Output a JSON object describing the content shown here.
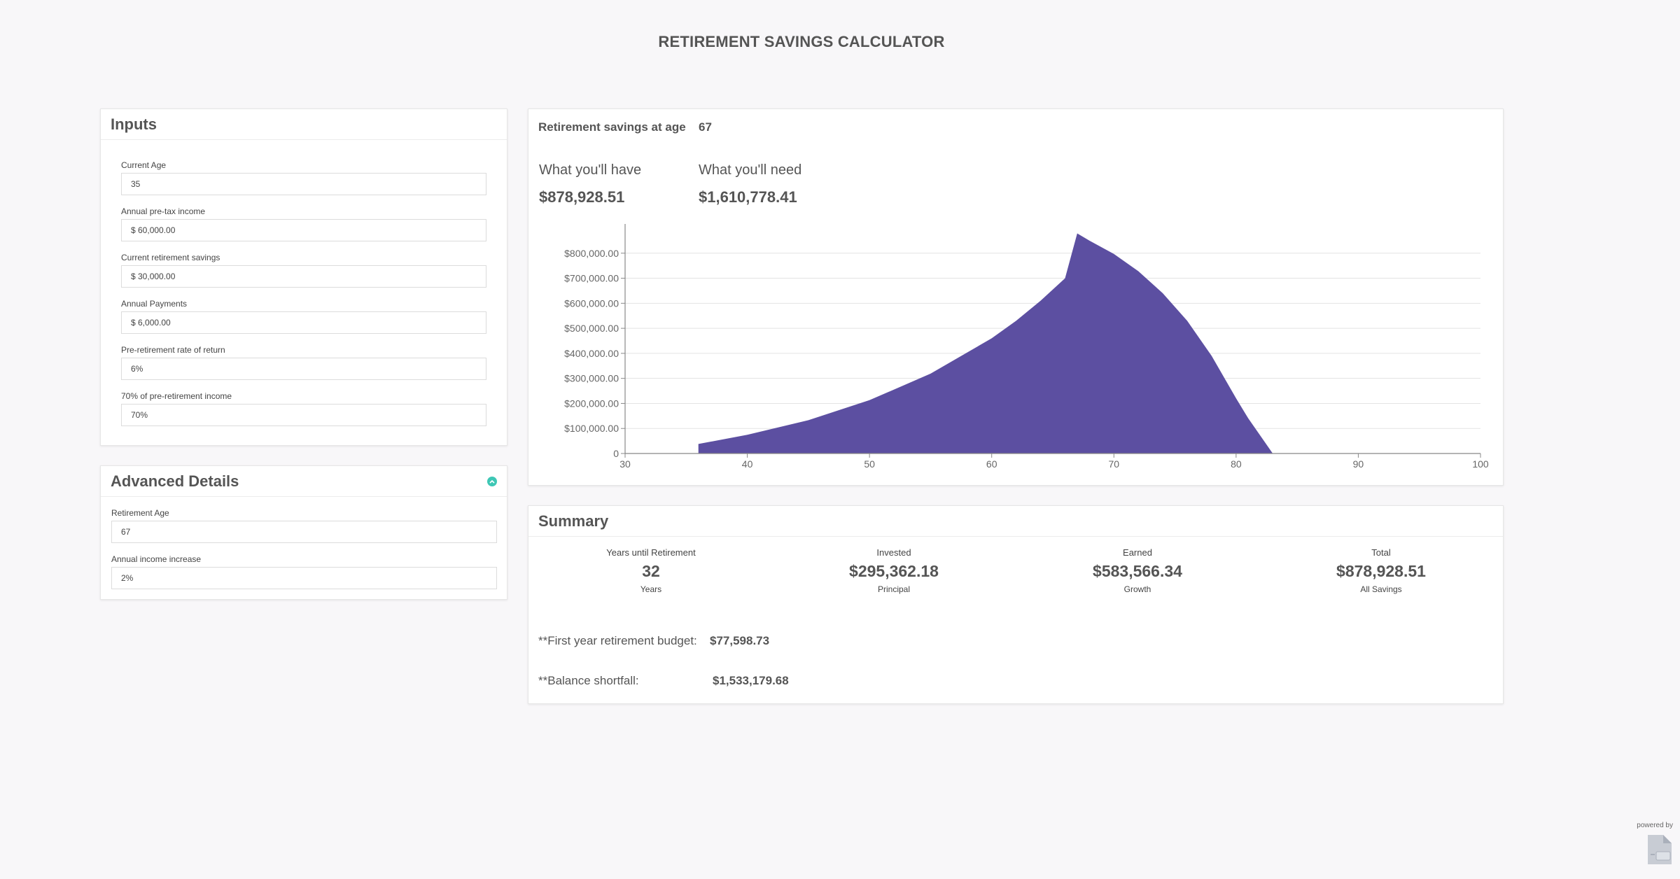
{
  "page": {
    "title": "RETIREMENT SAVINGS CALCULATOR"
  },
  "inputs": {
    "title": "Inputs",
    "fields": [
      {
        "label": "Current Age",
        "value": "35"
      },
      {
        "label": "Annual pre-tax income",
        "value": "$ 60,000.00"
      },
      {
        "label": "Current retirement savings",
        "value": "$ 30,000.00"
      },
      {
        "label": "Annual Payments",
        "value": "$ 6,000.00"
      },
      {
        "label": "Pre-retirement rate of return",
        "value": "6%"
      },
      {
        "label": "70% of pre-retirement income",
        "value": "70%"
      }
    ]
  },
  "advanced": {
    "title": "Advanced Details",
    "fields": [
      {
        "label": "Retirement Age",
        "value": "67"
      },
      {
        "label": "Annual income increase",
        "value": "2%"
      }
    ]
  },
  "results": {
    "age_label": "Retirement savings at age",
    "age_value": "67",
    "have_label": "What you'll have",
    "have_value": "$878,928.51",
    "need_label": "What you'll need",
    "need_value": "$1,610,778.41"
  },
  "chart_data": {
    "type": "area",
    "title": "",
    "xlabel": "",
    "ylabel": "",
    "xlim": [
      30,
      100
    ],
    "ylim": [
      0,
      900000
    ],
    "x_ticks": [
      30,
      40,
      50,
      60,
      70,
      80,
      90,
      100
    ],
    "y_ticks": [
      0,
      100000,
      200000,
      300000,
      400000,
      500000,
      600000,
      700000,
      800000
    ],
    "y_tick_labels": [
      "0",
      "$100,000.00",
      "$200,000.00",
      "$300,000.00",
      "$400,000.00",
      "$500,000.00",
      "$600,000.00",
      "$700,000.00",
      "$800,000.00"
    ],
    "grid": true,
    "color": "#5c4fa1",
    "series": [
      {
        "x": [
          36,
          40,
          45,
          50,
          55,
          60,
          62,
          64,
          66,
          67,
          68,
          70,
          72,
          74,
          76,
          78,
          80,
          81,
          82,
          83
        ],
        "values": [
          38000,
          75000,
          133000,
          213000,
          319000,
          460000,
          530000,
          610000,
          700000,
          878928,
          850000,
          797000,
          728000,
          640000,
          530000,
          390000,
          220000,
          140000,
          70000,
          0
        ]
      }
    ]
  },
  "summary": {
    "title": "Summary",
    "stats": [
      {
        "label": "Years until Retirement",
        "value": "32",
        "sub": "Years"
      },
      {
        "label": "Invested",
        "value": "$295,362.18",
        "sub": "Principal"
      },
      {
        "label": "Earned",
        "value": "$583,566.34",
        "sub": "Growth"
      },
      {
        "label": "Total",
        "value": "$878,928.51",
        "sub": "All Savings"
      }
    ],
    "budget_label": "**First year retirement budget:",
    "budget_value": "$77,598.73",
    "shortfall_label": "**Balance shortfall:",
    "shortfall_value": "$1,533,179.68"
  },
  "footer": {
    "powered_by": "powered by"
  }
}
